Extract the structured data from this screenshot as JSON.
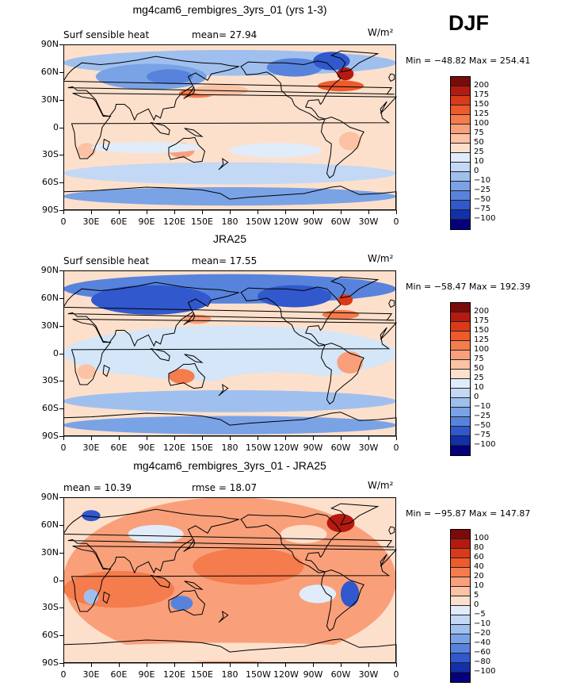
{
  "season": "DJF",
  "colors": {
    "ocean_blue_light": "#d4e6f8",
    "ocean_peach": "#fde0cc",
    "land_outline": "#000000",
    "high_red": "#e6441a",
    "low_blue": "#3a69d6"
  },
  "panels": [
    {
      "title": "mg4cam6_rembigres_3yrs_01 (yrs 1-3)",
      "left_label": "Surf sensible heat",
      "mid_label": "mean=  27.94",
      "units": "W/m²",
      "minmax": "Min = −48.82 Max = 254.41",
      "colorbar_levels": [
        "200",
        "175",
        "150",
        "125",
        "100",
        "75",
        "50",
        "25",
        "10",
        "0",
        "−10",
        "−25",
        "−50",
        "−75",
        "−100"
      ],
      "colorbar_colors": [
        "#7b0a0a",
        "#b41a10",
        "#d93b1a",
        "#ee5a2c",
        "#f57c4d",
        "#f9a07a",
        "#fbc2a4",
        "#fde0cc",
        "#e1ecfa",
        "#c3d8f4",
        "#9fc0ee",
        "#7aa3e6",
        "#5783dc",
        "#3158cc",
        "#1230a8",
        "#05007a"
      ]
    },
    {
      "title": "JRA25",
      "left_label": "Surf sensible heat",
      "mid_label": "mean=  17.55",
      "units": "W/m²",
      "minmax": "Min = −58.47 Max = 192.39",
      "colorbar_levels": [
        "200",
        "175",
        "150",
        "125",
        "100",
        "75",
        "50",
        "25",
        "10",
        "0",
        "−10",
        "−25",
        "−50",
        "−75",
        "−100"
      ],
      "colorbar_colors": [
        "#7b0a0a",
        "#b41a10",
        "#d93b1a",
        "#ee5a2c",
        "#f57c4d",
        "#f9a07a",
        "#fbc2a4",
        "#fde0cc",
        "#e1ecfa",
        "#c3d8f4",
        "#9fc0ee",
        "#7aa3e6",
        "#5783dc",
        "#3158cc",
        "#1230a8",
        "#05007a"
      ]
    },
    {
      "title": "mg4cam6_rembigres_3yrs_01 - JRA25",
      "left_label": "mean =  10.39",
      "mid_label": "rmse =  18.07",
      "units": "W/m²",
      "minmax": "Min = −95.87 Max = 147.87",
      "colorbar_levels": [
        "100",
        "80",
        "60",
        "40",
        "20",
        "10",
        "5",
        "0",
        "−5",
        "−10",
        "−20",
        "−40",
        "−60",
        "−80",
        "−100"
      ],
      "colorbar_colors": [
        "#7b0a0a",
        "#b41a10",
        "#d93b1a",
        "#ee5a2c",
        "#f57c4d",
        "#f9a07a",
        "#fbc2a4",
        "#fde0cc",
        "#e1ecfa",
        "#c3d8f4",
        "#9fc0ee",
        "#7aa3e6",
        "#5783dc",
        "#3158cc",
        "#1230a8",
        "#05007a"
      ]
    }
  ],
  "axes": {
    "lat_ticks": [
      "90N",
      "60N",
      "30N",
      "0",
      "30S",
      "60S",
      "90S"
    ],
    "lon_ticks": [
      "0",
      "30E",
      "60E",
      "90E",
      "120E",
      "150E",
      "180",
      "150W",
      "120W",
      "90W",
      "60W",
      "30W",
      "0"
    ]
  }
}
